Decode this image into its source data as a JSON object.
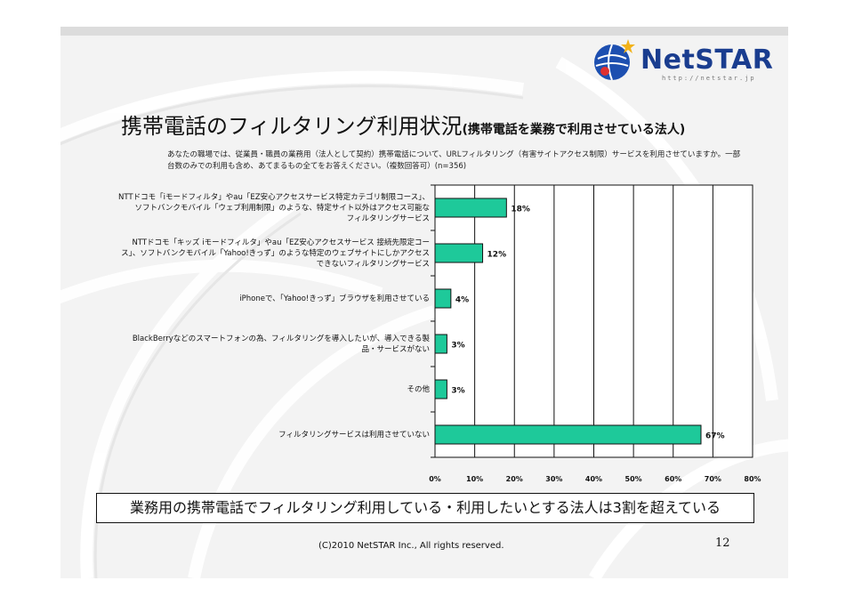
{
  "logo": {
    "name": "NetSTAR",
    "url": "http://netstar.jp"
  },
  "title": {
    "main": "携帯電話のフィルタリング利用状況",
    "sub": "(携帯電話を業務で利用させている法人)"
  },
  "question": "あなたの職場では、従業員・職員の業務用（法人として契約）携帯電話について、URLフィルタリング（有害サイトアクセス制限）サービスを利用させていますか。一部台数のみでの利用も含め、あてまるもの全てをお答えください。（複数回答可）(n=356)",
  "chart_data": {
    "type": "bar",
    "orientation": "horizontal",
    "categories": [
      "NTTドコモ「iモードフィルタ」やau「EZ安心アクセスサービス特定カテゴリ制限コース」、ソフトバンクモバイル「ウェブ利用制限」のような、特定サイト以外はアクセス可能なフィルタリングサービス",
      "NTTドコモ「キッズ iモードフィルタ」やau「EZ安心アクセスサービス 接続先限定コース」、ソフトバンクモバイル「Yahoo!きっず」のような特定のウェブサイトにしかアクセスできないフィルタリングサービス",
      "iPhoneで、「Yahoo!きっず」ブラウザを利用させている",
      "BlackBerryなどのスマートフォンの為、フィルタリングを導入したいが、導入できる製品・サービスがない",
      "その他",
      "フィルタリングサービスは利用させていない"
    ],
    "category_lines": [
      [
        "NTTドコモ「iモードフィルタ」やau「EZ安心アクセスサービス特定カテゴリ制限コース」、",
        "ソフトバンクモバイル「ウェブ利用制限」のような、特定サイト以外はアクセス可能な",
        "フィルタリングサービス"
      ],
      [
        "NTTドコモ「キッズ iモードフィルタ」やau「EZ安心アクセスサービス 接続先限定コー",
        "ス」、ソフトバンクモバイル「Yahoo!きっず」のような特定のウェブサイトにしかアクセス",
        "できないフィルタリングサービス"
      ],
      [
        "iPhoneで、「Yahoo!きっず」ブラウザを利用させている"
      ],
      [
        "BlackBerryなどのスマートフォンの為、フィルタリングを導入したいが、導入できる製",
        "品・サービスがない"
      ],
      [
        "その他"
      ],
      [
        "フィルタリングサービスは利用させていない"
      ]
    ],
    "values": [
      18,
      12,
      4,
      3,
      3,
      67
    ],
    "value_labels": [
      "18%",
      "12%",
      "4%",
      "3%",
      "3%",
      "67%"
    ],
    "xlim": [
      0,
      80
    ],
    "xticks": [
      "0%",
      "10%",
      "20%",
      "30%",
      "40%",
      "50%",
      "60%",
      "70%",
      "80%"
    ],
    "bar_color": "#1ec99a",
    "grid": "vertical",
    "legend": "none"
  },
  "conclusion": "業務用の携帯電話でフィルタリング利用している・利用したいとする法人は3割を超えている",
  "copyright": "(C)2010 NetSTAR Inc., All rights reserved.",
  "page_number": "12"
}
